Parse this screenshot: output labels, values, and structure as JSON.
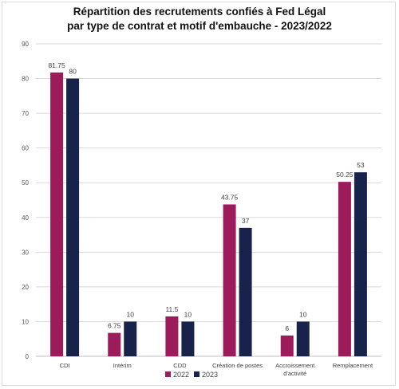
{
  "chart_data": {
    "type": "bar",
    "title_line1": "Répartition des recrutements confiés à Fed Légal",
    "title_line2": "par type de contrat et motif d'embauche - 2023/2022",
    "categories": [
      [
        "CDI"
      ],
      [
        "Intérim"
      ],
      [
        "CDD"
      ],
      [
        "Création de postes"
      ],
      [
        "Accroissement",
        "d'activité"
      ],
      [
        "Remplacement"
      ]
    ],
    "series": [
      {
        "name": "2022",
        "color": "#9c1b5a",
        "values": [
          81.75,
          6.75,
          11.5,
          43.75,
          6,
          50.25
        ]
      },
      {
        "name": "2023",
        "color": "#17234a",
        "values": [
          80,
          10,
          10,
          37,
          10,
          53
        ]
      }
    ],
    "ylim": [
      0,
      90
    ],
    "yticks": [
      0,
      10,
      20,
      30,
      40,
      50,
      60,
      70,
      80,
      90
    ],
    "grid": true,
    "legend_position": "bottom"
  }
}
